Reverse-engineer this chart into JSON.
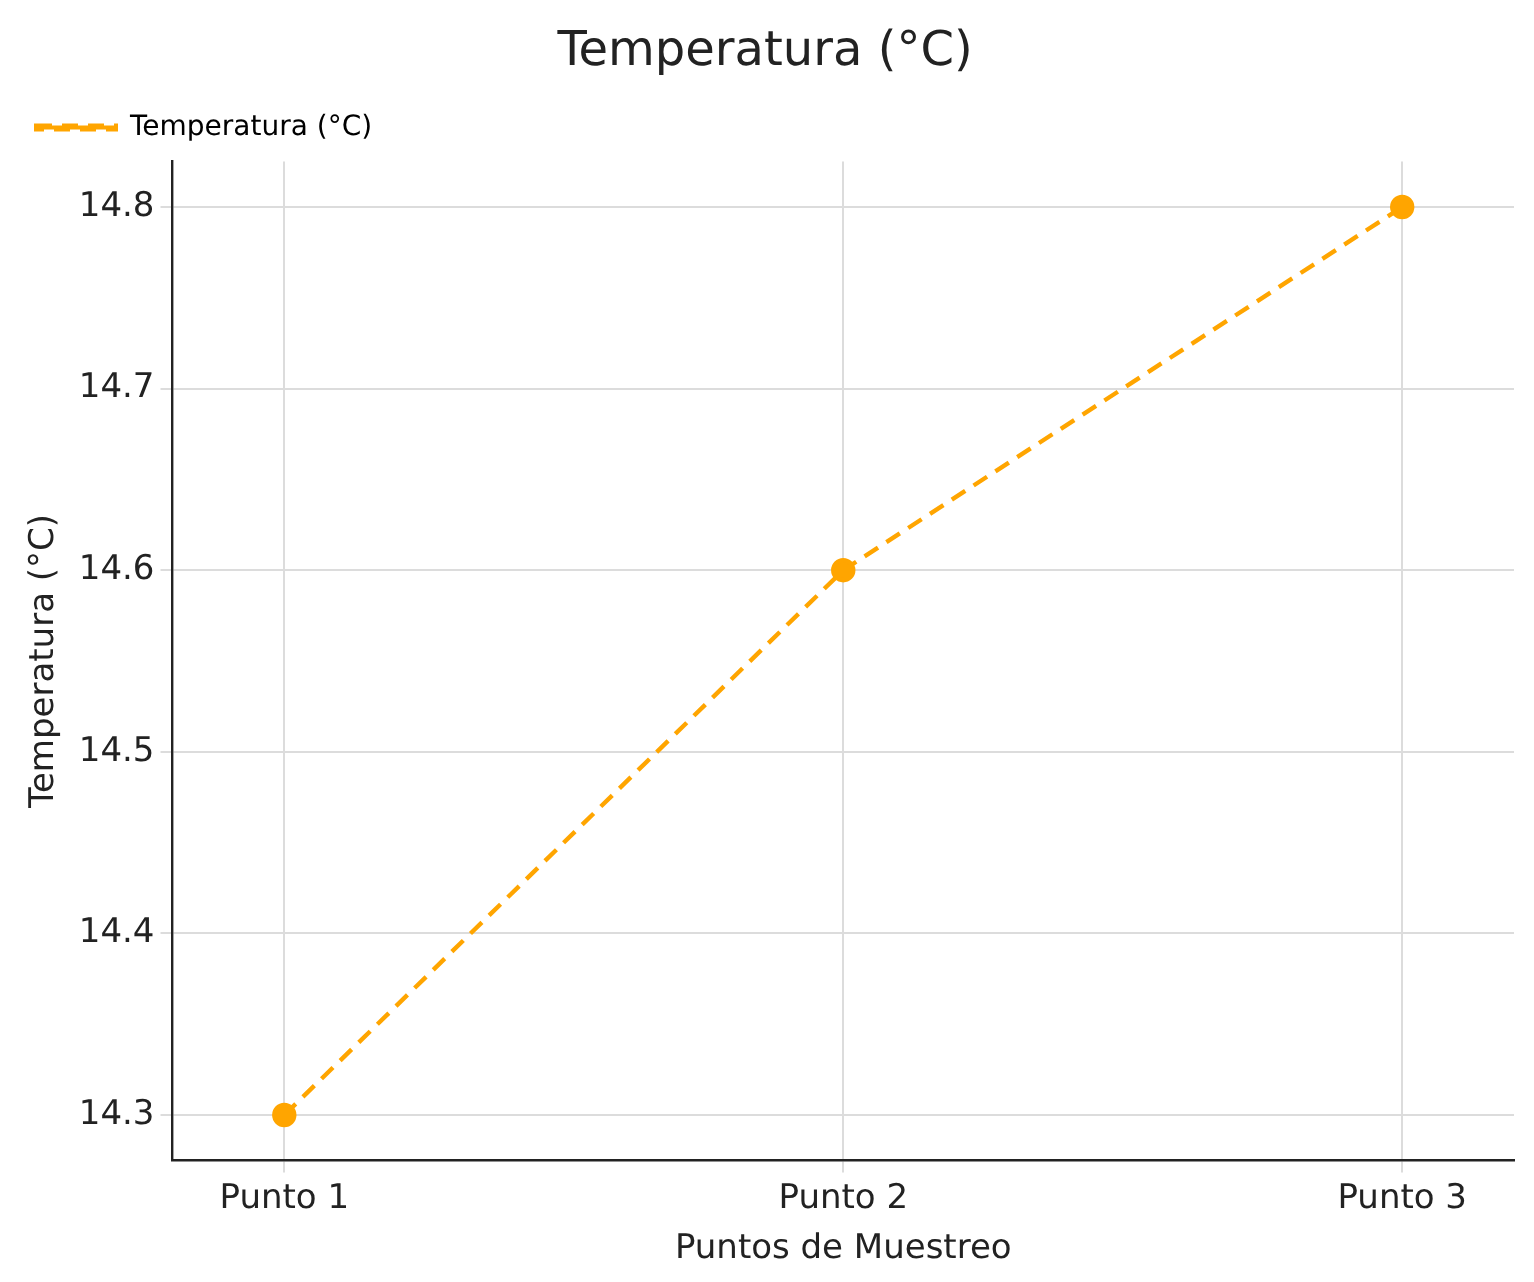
{
  "chart_data": {
    "type": "line",
    "title": "Temperatura (°C)",
    "xlabel": "Puntos de Muestreo",
    "ylabel": "Temperatura (°C)",
    "categories": [
      "Punto 1",
      "Punto 2",
      "Punto 3"
    ],
    "series": [
      {
        "name": "Temperatura (°C)",
        "color": "#ffa500",
        "values": [
          14.3,
          14.6,
          14.8
        ]
      }
    ],
    "ylim": [
      14.275,
      14.825
    ],
    "yticks": [
      14.3,
      14.4,
      14.5,
      14.6,
      14.7,
      14.8
    ],
    "grid": true,
    "legend": "top left",
    "marker": "circle",
    "line_style": "dashed"
  }
}
